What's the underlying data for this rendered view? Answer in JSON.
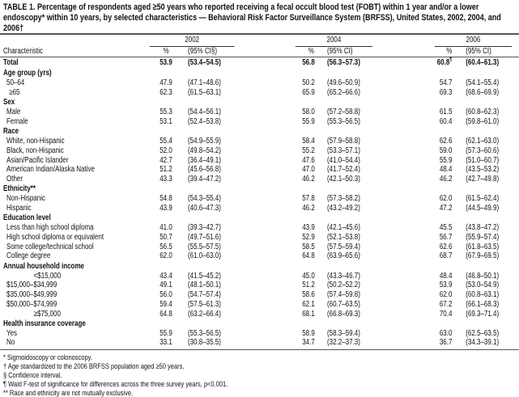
{
  "title": "TABLE 1. Percentage of respondents aged ≥50 years who reported receiving a fecal occult blood test (FOBT) within 1 year and/or a lower endoscopy* within 10 years, by selected characteristics — Behavioral Risk Factor Surveillance System (BRFSS), United States, 2002, 2004, and 2006†",
  "years": [
    "2002",
    "2004",
    "2006"
  ],
  "headers": {
    "characteristic": "Characteristic",
    "pct": "%",
    "ci_first": "(95% CI§)",
    "ci": "(95% CI)"
  },
  "total_mark": "¶",
  "rows": [
    {
      "type": "total",
      "label": "Total",
      "v": [
        "53.9",
        "(53.4–54.5)",
        "56.8",
        "(56.3–57.3)",
        "60.8",
        "(60.4–61.3)"
      ]
    },
    {
      "type": "group",
      "label": "Age group (yrs)"
    },
    {
      "type": "item",
      "label": "50–64",
      "v": [
        "47.9",
        "(47.1–48.6)",
        "50.2",
        "(49.6–50.9)",
        "54.7",
        "(54.1–55.4)"
      ]
    },
    {
      "type": "item",
      "indent": 2,
      "label": "≥65",
      "v": [
        "62.3",
        "(61.5–63.1)",
        "65.9",
        "(65.2–66.6)",
        "69.3",
        "(68.6–69.9)"
      ]
    },
    {
      "type": "group",
      "label": "Sex"
    },
    {
      "type": "item",
      "label": "Male",
      "v": [
        "55.3",
        "(54.4–56.1)",
        "58.0",
        "(57.2–58.8)",
        "61.5",
        "(60.8–62.3)"
      ]
    },
    {
      "type": "item",
      "label": "Female",
      "v": [
        "53.1",
        "(52.4–53.8)",
        "55.9",
        "(55.3–56.5)",
        "60.4",
        "(59.8–61.0)"
      ]
    },
    {
      "type": "group",
      "label": "Race"
    },
    {
      "type": "item",
      "label": "White, non-Hispanic",
      "v": [
        "55.4",
        "(54.9–55.9)",
        "58.4",
        "(57.9–58.8)",
        "62.6",
        "(62.1–63.0)"
      ]
    },
    {
      "type": "item",
      "label": "Black, non-Hispanic",
      "v": [
        "52.0",
        "(49.8–54.2)",
        "55.2",
        "(53.3–57.1)",
        "59.0",
        "(57.3–60.6)"
      ]
    },
    {
      "type": "item",
      "label": "Asian/Pacific Islander",
      "v": [
        "42.7",
        "(36.4–49.1)",
        "47.6",
        "(41.0–54.4)",
        "55.9",
        "(51.0–60.7)"
      ]
    },
    {
      "type": "item",
      "label": "American Indian/Alaska Native",
      "v": [
        "51.2",
        "(45.6–56.8)",
        "47.0",
        "(41.7–52.4)",
        "48.4",
        "(43.5–53.2)"
      ]
    },
    {
      "type": "item",
      "label": "Other",
      "v": [
        "43.3",
        "(39.4–47.2)",
        "46.2",
        "(42.1–50.3)",
        "46.2",
        "(42.7–49.8)"
      ]
    },
    {
      "type": "group",
      "label": "Ethnicity**"
    },
    {
      "type": "item",
      "label": "Non-Hispanic",
      "v": [
        "54.8",
        "(54.3–55.4)",
        "57.8",
        "(57.3–58.2)",
        "62.0",
        "(61.5–62.4)"
      ]
    },
    {
      "type": "item",
      "label": "Hispanic",
      "v": [
        "43.9",
        "(40.6–47.3)",
        "46.2",
        "(43.2–49.2)",
        "47.2",
        "(44.5–49.9)"
      ]
    },
    {
      "type": "group",
      "label": "Education level"
    },
    {
      "type": "item",
      "label": "Less than high school diploma",
      "v": [
        "41.0",
        "(39.3–42.7)",
        "43.9",
        "(42.1–45.6)",
        "45.5",
        "(43.8–47.2)"
      ]
    },
    {
      "type": "item",
      "label": "High school diploma or equivalent",
      "v": [
        "50.7",
        "(49.7–51.6)",
        "52.9",
        "(52.1–53.8)",
        "56.7",
        "(55.9–57.4)"
      ]
    },
    {
      "type": "item",
      "label": "Some college/technical school",
      "v": [
        "56.5",
        "(55.5–57.5)",
        "58.5",
        "(57.5–59.4)",
        "62.6",
        "(61.8–63.5)"
      ]
    },
    {
      "type": "item",
      "label": "College degree",
      "v": [
        "62.0",
        "(61.0–63.0)",
        "64.8",
        "(63.9–65.6)",
        "68.7",
        "(67.9–69.5)"
      ]
    },
    {
      "type": "group",
      "label": "Annual household income"
    },
    {
      "type": "item",
      "indent": 3,
      "label": "<$15,000",
      "v": [
        "43.4",
        "(41.5–45.2)",
        "45.0",
        "(43.3–46.7)",
        "48.4",
        "(46.8–50.1)"
      ]
    },
    {
      "type": "item",
      "label": "$15,000–$34,999",
      "v": [
        "49.1",
        "(48.1–50.1)",
        "51.2",
        "(50.2–52.2)",
        "53.9",
        "(53.0–54.9)"
      ]
    },
    {
      "type": "item",
      "label": "$35,000–$49,999",
      "v": [
        "56.0",
        "(54.7–57.4)",
        "58.6",
        "(57.4–59.8)",
        "62.0",
        "(60.8–63.1)"
      ]
    },
    {
      "type": "item",
      "label": "$50,000–$74,999",
      "v": [
        "59.4",
        "(57.5–61.3)",
        "62.1",
        "(60.7–63.5)",
        "67.2",
        "(66.1–68.3)"
      ]
    },
    {
      "type": "item",
      "indent": 3,
      "label": "≥$75,000",
      "v": [
        "64.8",
        "(63.2–66.4)",
        "68.1",
        "(66.8–69.3)",
        "70.4",
        "(69.3–71.4)"
      ]
    },
    {
      "type": "group",
      "label": "Health insurance coverage"
    },
    {
      "type": "item",
      "label": "Yes",
      "v": [
        "55.9",
        "(55.3–56.5)",
        "58.9",
        "(58.3–59.4)",
        "63.0",
        "(62.5–63.5)"
      ]
    },
    {
      "type": "item",
      "label": "No",
      "v": [
        "33.1",
        "(30.8–35.5)",
        "34.7",
        "(32.2–37.3)",
        "36.7",
        "(34.3–39.1)"
      ]
    }
  ],
  "footnotes": [
    "* Sigmoidoscopy or colonoscopy.",
    "† Age standardized to the 2006 BRFSS population aged ≥50 years.",
    "§ Confidence interval.",
    "¶ Wald F-test of significance for differences across the three survey years, p<0.001.",
    "** Race and ethnicity are not mutually exclusive."
  ]
}
